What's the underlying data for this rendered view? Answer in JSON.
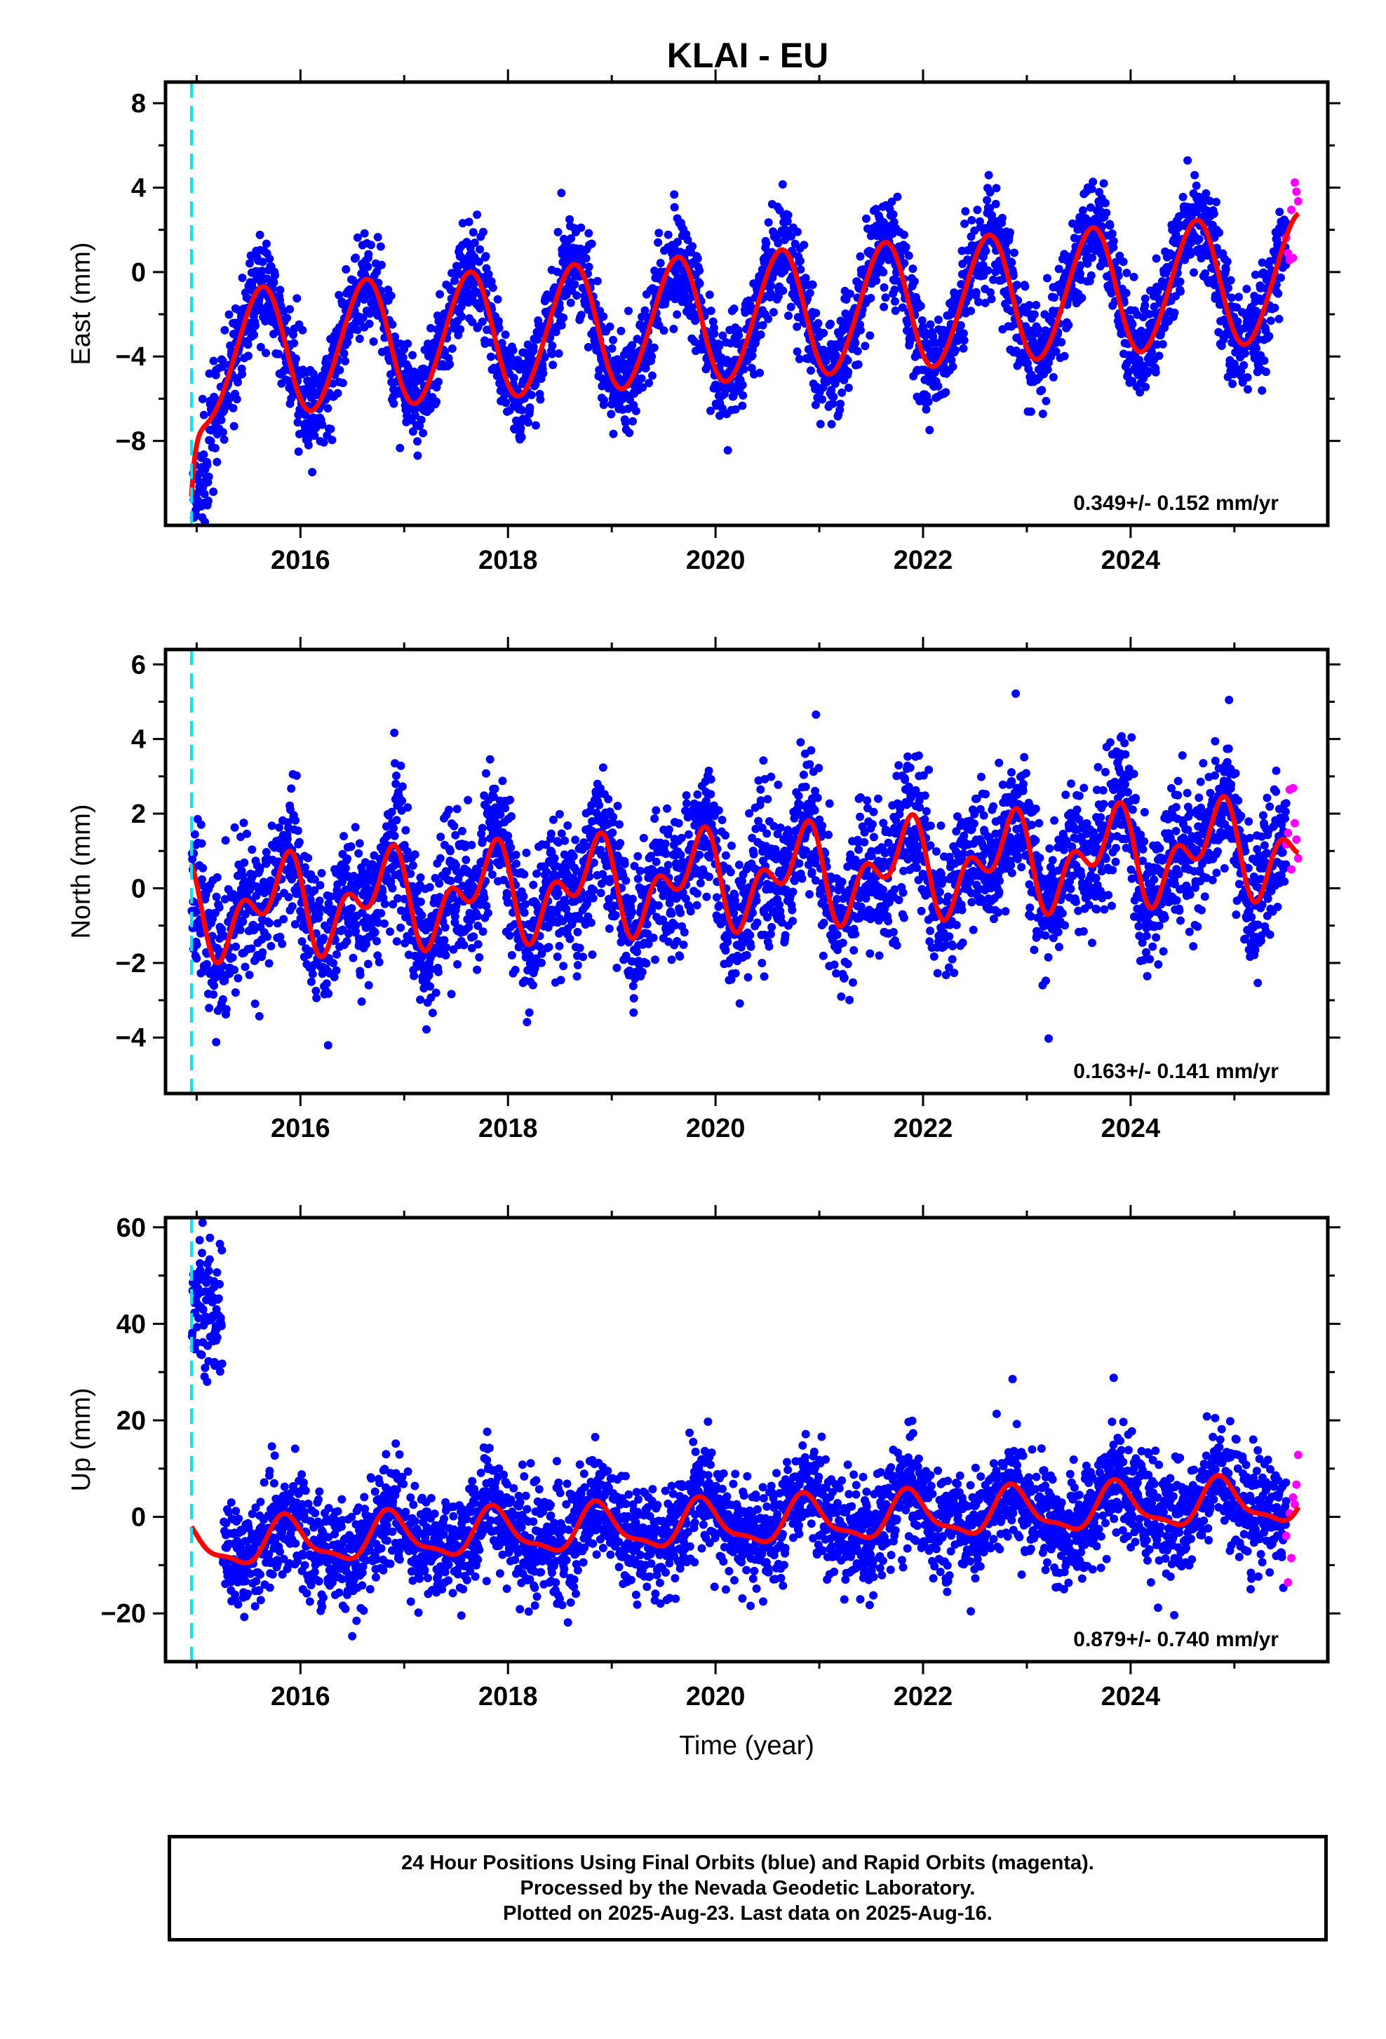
{
  "title": "KLAI - EU",
  "caption": [
    "24 Hour Positions Using Final Orbits (blue) and Rapid Orbits (magenta).",
    "Processed by the Nevada Geodetic Laboratory.",
    "Plotted on 2025-Aug-23. Last data on 2025-Aug-16."
  ],
  "colors": {
    "final_orbits": "#0000ff",
    "rapid_orbits": "#ff00ff",
    "model_fit": "#ff0000",
    "event_line": "#00e5ff"
  },
  "chart_data": [
    {
      "type": "scatter",
      "ylabel": "East (mm)",
      "xlabel": "",
      "xlim": [
        2014.7,
        2025.9
      ],
      "ylim": [
        -12,
        9
      ],
      "xticks": [
        2016,
        2018,
        2020,
        2022,
        2024
      ],
      "yticks": [
        -8,
        -4,
        0,
        4,
        8
      ],
      "event_line_x": 2014.95,
      "velocity_label": "0.349+/- 0.152 mm/yr",
      "model": {
        "start": 2014.95,
        "end": 2025.62,
        "offset": -4.0,
        "trend": 0.349,
        "amp1": 3.0,
        "phase1": 0.37,
        "amp2": 0.2,
        "phase2": 0.1,
        "initial_jump": -5.0,
        "jump_decay": 0.05
      },
      "scatter": {
        "seed": 11,
        "noise": 1.15,
        "final_end": 2025.5,
        "rapid_start": 2025.5,
        "rapid_end": 2025.62,
        "early_offset": -2.5,
        "early_end": 2015.12
      }
    },
    {
      "type": "scatter",
      "ylabel": "North (mm)",
      "xlabel": "",
      "xlim": [
        2014.7,
        2025.9
      ],
      "ylim": [
        -5.5,
        6.4
      ],
      "xticks": [
        2016,
        2018,
        2020,
        2022,
        2024
      ],
      "yticks": [
        -4,
        -2,
        0,
        2,
        4,
        6
      ],
      "event_line_x": 2014.95,
      "velocity_label": "0.163+/- 0.141 mm/yr",
      "model": {
        "start": 2014.95,
        "end": 2025.62,
        "offset": -0.6,
        "trend": 0.163,
        "amp1": 0.9,
        "phase1": 0.55,
        "amp2": 0.75,
        "phase2": 0.3,
        "initial_jump": 0.0,
        "jump_decay": 0.05
      },
      "scatter": {
        "seed": 23,
        "noise": 0.95,
        "final_end": 2025.5,
        "rapid_start": 2025.5,
        "rapid_end": 2025.62,
        "early_offset": 0.0,
        "early_end": 2015.0
      }
    },
    {
      "type": "scatter",
      "ylabel": "Up (mm)",
      "xlabel": "Time (year)",
      "xlim": [
        2014.7,
        2025.9
      ],
      "ylim": [
        -30,
        62
      ],
      "xticks": [
        2016,
        2018,
        2020,
        2022,
        2024
      ],
      "yticks": [
        -20,
        0,
        20,
        40,
        60
      ],
      "event_line_x": 2014.95,
      "velocity_label": "0.879+/- 0.740 mm/yr",
      "model": {
        "start": 2014.95,
        "end": 2025.62,
        "offset": -6.0,
        "trend": 0.879,
        "amp1": 4.5,
        "phase1": 0.62,
        "amp2": 1.5,
        "phase2": 0.2,
        "initial_jump": 0.0,
        "jump_decay": 0.05
      },
      "scatter": {
        "seed": 37,
        "noise": 5.5,
        "final_end": 2025.5,
        "rapid_start": 2025.5,
        "rapid_end": 2025.62,
        "early_offset": 50.0,
        "early_end": 2015.25
      }
    }
  ]
}
